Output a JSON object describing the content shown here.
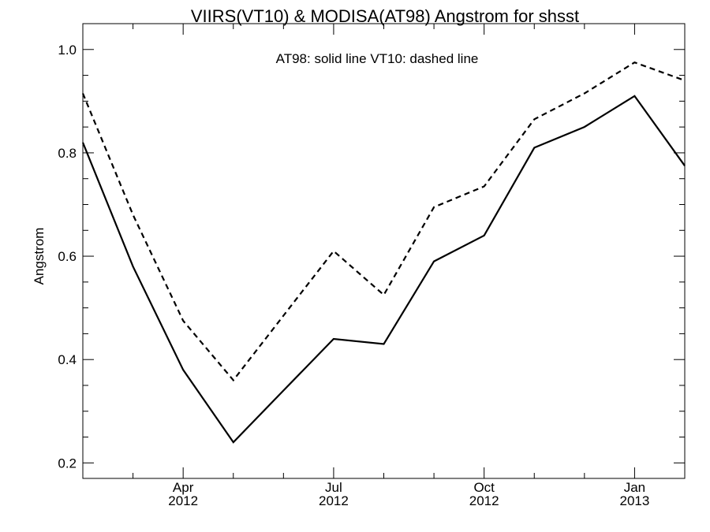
{
  "chart_data": {
    "type": "line",
    "title": "VIIRS(VT10) & MODISA(AT98)  Angstrom for shsst",
    "annotation": "AT98: solid line   VT10: dashed line",
    "ylabel": "Angstrom",
    "xlabel": "",
    "ylim": [
      0.17,
      1.05
    ],
    "xlim": [
      0,
      12
    ],
    "y_ticks": [
      "0.2",
      "0.4",
      "0.6",
      "0.8",
      "1.0"
    ],
    "x_tick_labels": [
      {
        "month": "Apr",
        "year": "2012",
        "x": 2
      },
      {
        "month": "Jul",
        "year": "2012",
        "x": 5
      },
      {
        "month": "Oct",
        "year": "2012",
        "x": 8
      },
      {
        "month": "Jan",
        "year": "2013",
        "x": 11
      }
    ],
    "x": [
      0,
      1,
      2,
      3,
      4,
      5,
      6,
      7,
      8,
      9,
      10,
      11,
      12
    ],
    "series": [
      {
        "name": "AT98",
        "style": "solid",
        "values": [
          0.82,
          0.58,
          0.38,
          0.24,
          0.34,
          0.44,
          0.43,
          0.59,
          0.64,
          0.81,
          0.85,
          0.91,
          0.775
        ]
      },
      {
        "name": "VT10",
        "style": "dashed",
        "values": [
          0.915,
          0.68,
          0.475,
          0.36,
          0.485,
          0.61,
          0.525,
          0.695,
          0.735,
          0.865,
          0.915,
          0.975,
          0.94
        ]
      }
    ],
    "grid": false
  }
}
